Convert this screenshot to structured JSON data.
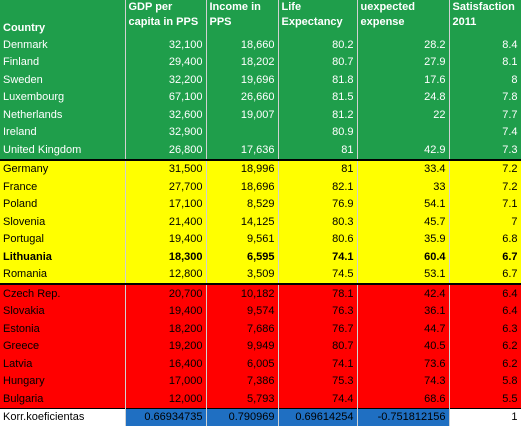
{
  "headers": [
    "Country",
    "GDP per capita in PPS",
    "Income in PPS",
    "Life Expectancy",
    "uexpected expense",
    "Satisfaction 2011"
  ],
  "groups": [
    {
      "color": "#1f9e4b",
      "rows": [
        [
          "Denmark",
          "32,100",
          "18,660",
          "80.2",
          "28.2",
          "8.4"
        ],
        [
          "Finland",
          "29,400",
          "18,202",
          "80.7",
          "27.9",
          "8.1"
        ],
        [
          "Sweden",
          "32,200",
          "19,696",
          "81.8",
          "17.6",
          "8"
        ],
        [
          "Luxembourg",
          "67,100",
          "26,660",
          "81.5",
          "24.8",
          "7.8"
        ],
        [
          "Netherlands",
          "32,600",
          "19,007",
          "81.2",
          "22",
          "7.7"
        ],
        [
          "Ireland",
          "32,900",
          "",
          "80.9",
          "",
          "7.4"
        ],
        [
          "United Kingdom",
          "26,800",
          "17,636",
          "81",
          "42.9",
          "7.3"
        ]
      ]
    },
    {
      "color": "#ffff00",
      "rows": [
        [
          "Germany",
          "31,500",
          "18,996",
          "81",
          "33.4",
          "7.2"
        ],
        [
          "France",
          "27,700",
          "18,696",
          "82.1",
          "33",
          "7.2"
        ],
        [
          "Poland",
          "17,100",
          "8,529",
          "76.9",
          "54.1",
          "7.1"
        ],
        [
          "Slovenia",
          "21,400",
          "14,125",
          "80.3",
          "45.7",
          "7"
        ],
        [
          "Portugal",
          "19,400",
          "9,561",
          "80.6",
          "35.9",
          "6.8"
        ],
        [
          "Lithuania",
          "18,300",
          "6,595",
          "74.1",
          "60.4",
          "6.7"
        ],
        [
          "Romania",
          "12,800",
          "3,509",
          "74.5",
          "53.1",
          "6.7"
        ]
      ]
    },
    {
      "color": "#ff0000",
      "rows": [
        [
          "Czech Rep.",
          "20,700",
          "10,182",
          "78.1",
          "42.4",
          "6.4"
        ],
        [
          "Slovakia",
          "19,400",
          "9,574",
          "76.3",
          "36.1",
          "6.4"
        ],
        [
          "Estonia",
          "18,200",
          "7,686",
          "76.7",
          "44.7",
          "6.3"
        ],
        [
          "Greece",
          "19,200",
          "9,949",
          "80.7",
          "40.5",
          "6.2"
        ],
        [
          "Latvia",
          "16,400",
          "6,005",
          "74.1",
          "73.6",
          "6.2"
        ],
        [
          "Hungary",
          "17,000",
          "7,386",
          "75.3",
          "74.3",
          "5.8"
        ],
        [
          "Bulgaria",
          "12,000",
          "5,793",
          "74.4",
          "68.6",
          "5.5"
        ]
      ]
    }
  ],
  "highlight_row": "Lithuania",
  "footer": [
    "Korr.koeficientas",
    "0.66934735",
    "0.790969",
    "0.69614254",
    "-0.751812156",
    "1"
  ]
}
